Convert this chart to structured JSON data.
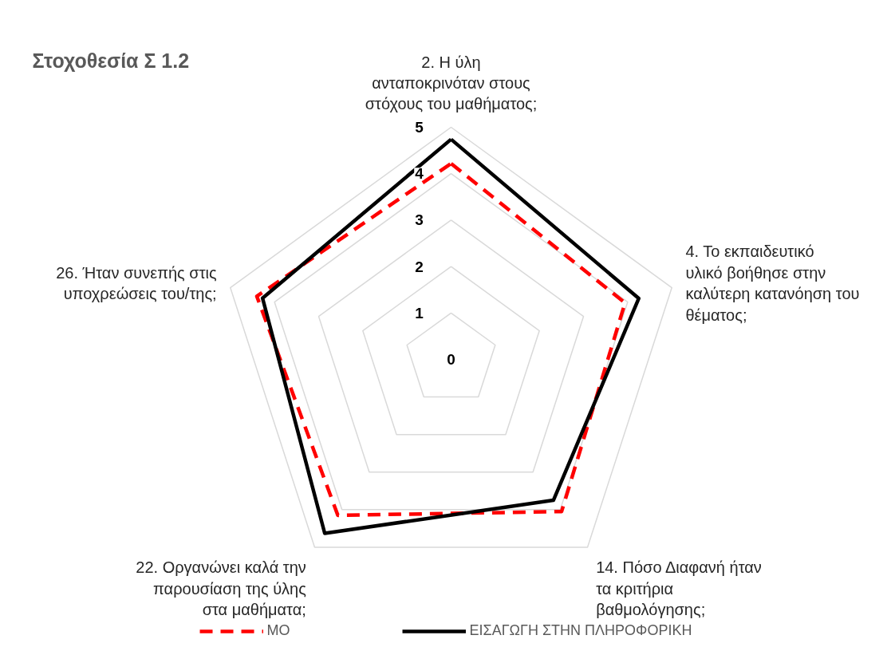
{
  "chart_data": {
    "type": "radar",
    "title": "Στοχοθεσία Σ 1.2",
    "categories": [
      "2. Η ύλη ανταποκρινόταν στους στόχους του μαθήματος;",
      "4. Το εκπαιδευτικό υλικό βοήθησε στην καλύτερη κατανόηση του θέματος;",
      "14. Πόσο Διαφανή ήταν τα κριτήρια βαθμολόγησης;",
      "22. Οργανώνει καλά την παρουσίαση της ύλης στα μαθήματα;",
      "26. Ήταν συνεπής στις υποχρεώσεις του/της;"
    ],
    "series": [
      {
        "name": "ΜΟ",
        "color": "#ff0000",
        "line_style": "dashed",
        "values": [
          4.22,
          3.94,
          4.05,
          4.15,
          4.4
        ]
      },
      {
        "name": "ΕΙΣΑΓΩΓΗ ΣΤΗΝ ΠΛΗΡΟΦΟΡΙΚΗ",
        "color": "#000000",
        "line_style": "solid",
        "values": [
          4.74,
          4.25,
          3.75,
          4.63,
          4.27
        ]
      }
    ],
    "ylim": [
      0,
      5
    ],
    "yticks": [
      0,
      1,
      2,
      3,
      4,
      5
    ],
    "grid": true,
    "legend": "bottom",
    "marker": "none"
  }
}
